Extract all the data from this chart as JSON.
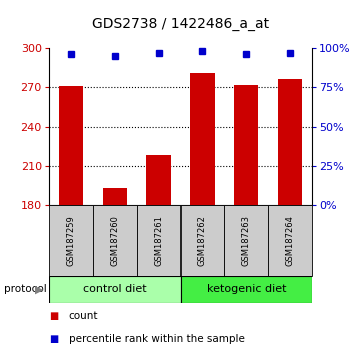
{
  "title": "GDS2738 / 1422486_a_at",
  "samples": [
    "GSM187259",
    "GSM187260",
    "GSM187261",
    "GSM187262",
    "GSM187263",
    "GSM187264"
  ],
  "bar_values": [
    271,
    193,
    218,
    281,
    272,
    276
  ],
  "percentile_values": [
    96,
    95,
    97,
    98,
    96,
    97
  ],
  "bar_baseline": 180,
  "ylim_left": [
    180,
    300
  ],
  "ylim_right": [
    0,
    100
  ],
  "yticks_left": [
    180,
    210,
    240,
    270,
    300
  ],
  "yticks_right": [
    0,
    25,
    50,
    75,
    100
  ],
  "bar_color": "#cc0000",
  "percentile_color": "#0000cc",
  "group1_label": "control diet",
  "group2_label": "ketogenic diet",
  "group1_indices": [
    0,
    1,
    2
  ],
  "group2_indices": [
    3,
    4,
    5
  ],
  "group1_bg_color": "#aaffaa",
  "group2_bg_color": "#44ee44",
  "sample_bg_color": "#cccccc",
  "protocol_label": "protocol",
  "legend_count_label": "count",
  "legend_percentile_label": "percentile rank within the sample",
  "bar_width": 0.55,
  "title_fontsize": 10,
  "tick_fontsize": 8,
  "sample_fontsize": 6,
  "group_fontsize": 8,
  "legend_fontsize": 7.5,
  "gridline_ticks": [
    210,
    240,
    270
  ],
  "chart_bgcolor": "#ffffff"
}
